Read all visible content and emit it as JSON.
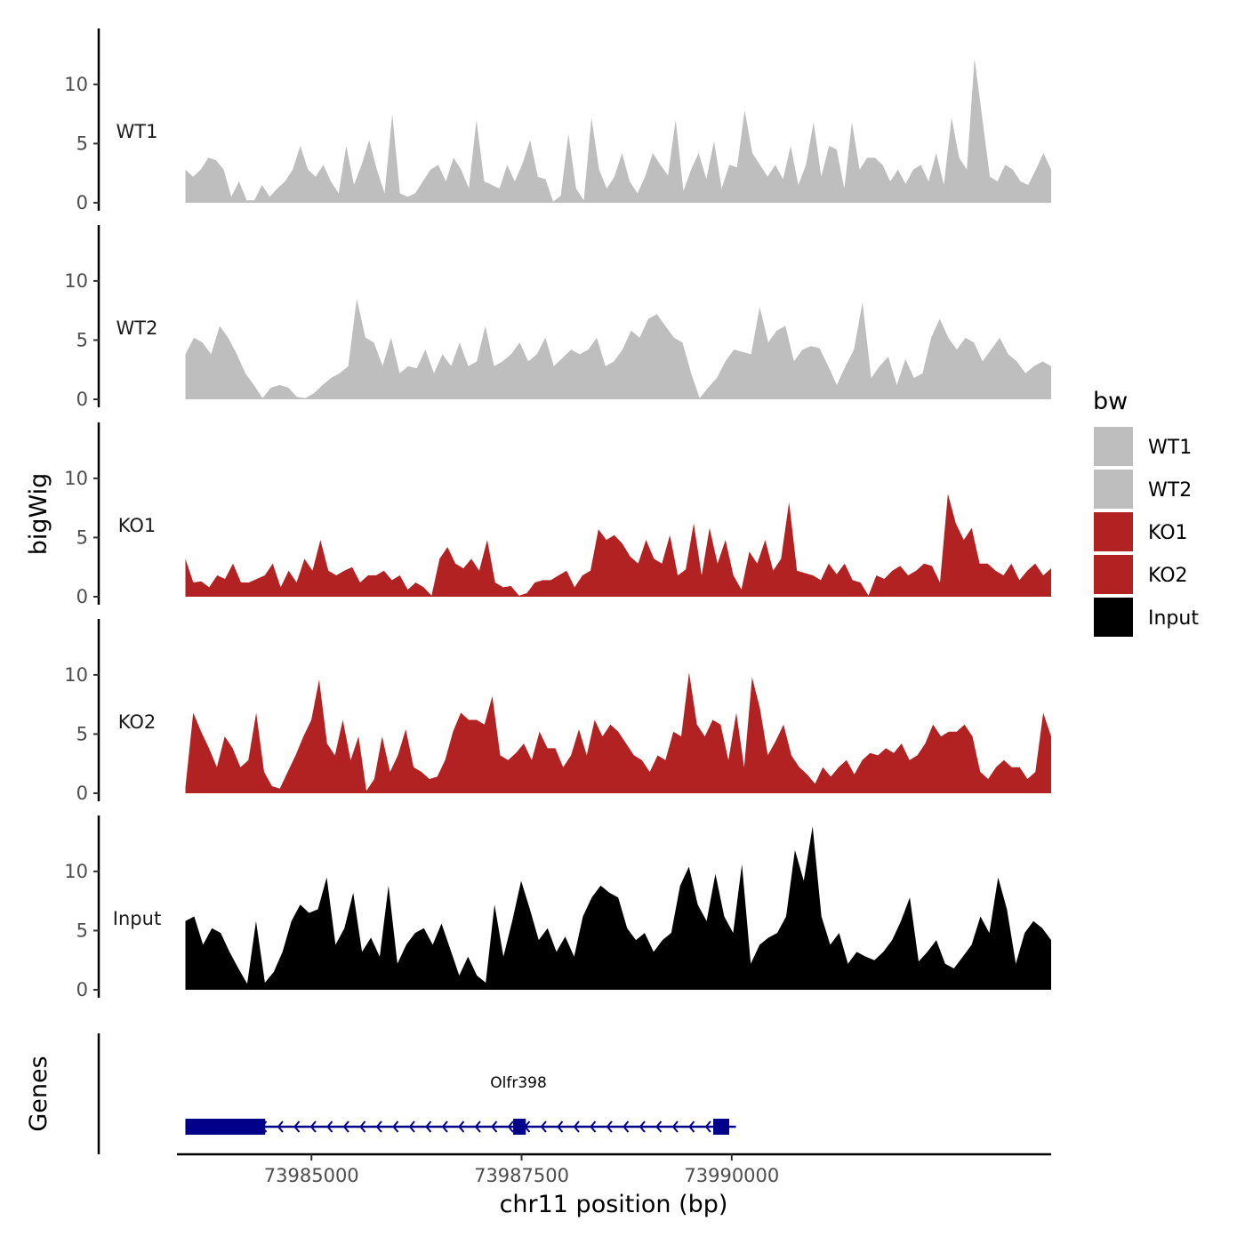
{
  "chart_data": {
    "type": "area",
    "ylabel": "bigWig",
    "xlabel": "chr11 position (bp)",
    "xlim": [
      73983400,
      73993800
    ],
    "ylim": [
      0,
      14.5
    ],
    "y_ticks": [
      0,
      5,
      10
    ],
    "y_tick_labels": [
      "0",
      "5",
      "10"
    ],
    "x_ticks": [
      73985000,
      73987500,
      73990000
    ],
    "x_tick_labels": [
      "73985000",
      "73987500",
      "73990000"
    ],
    "x_start": 73983500,
    "x_end": 73993800,
    "legend": {
      "title": "bw",
      "entries": [
        {
          "label": "WT1",
          "color": "#bebebe"
        },
        {
          "label": "WT2",
          "color": "#bebebe"
        },
        {
          "label": "KO1",
          "color": "#b22222"
        },
        {
          "label": "KO2",
          "color": "#b22222"
        },
        {
          "label": "Input",
          "color": "#000000"
        }
      ]
    },
    "tracks": [
      {
        "name": "WT1",
        "color": "#bebebe",
        "values": [
          2.8,
          2.2,
          2.8,
          3.8,
          3.6,
          2.8,
          0.5,
          1.8,
          0.2,
          0.2,
          1.5,
          0.5,
          1.2,
          1.8,
          2.8,
          4.8,
          2.8,
          2.2,
          3.2,
          1.8,
          0.8,
          4.8,
          1.5,
          3.2,
          5.3,
          2.8,
          0.8,
          7.5,
          0.8,
          0.5,
          0.8,
          1.8,
          2.8,
          3.2,
          1.8,
          3.8,
          2.8,
          1.2,
          7.0,
          1.8,
          1.5,
          1.2,
          3.2,
          1.8,
          3.3,
          5.3,
          2.2,
          2.0,
          0.1,
          0.6,
          5.8,
          1.2,
          0.2,
          7.2,
          2.8,
          1.2,
          2.2,
          4.2,
          1.8,
          0.8,
          2.2,
          4.2,
          3.2,
          2.3,
          7.0,
          1.0,
          2.8,
          4.2,
          2.0,
          5.2,
          1.2,
          3.2,
          3.0,
          7.8,
          4.2,
          3.2,
          2.2,
          3.2,
          2.0,
          4.8,
          1.5,
          3.2,
          6.8,
          2.2,
          4.8,
          4.5,
          1.2,
          6.8,
          2.8,
          3.8,
          3.8,
          3.2,
          1.8,
          2.8,
          1.6,
          2.8,
          3.2,
          1.8,
          4.2,
          1.5,
          7.2,
          3.8,
          2.8,
          12.2,
          7.2,
          2.2,
          1.8,
          3.2,
          2.8,
          1.8,
          1.5,
          2.8,
          4.2,
          2.8
        ]
      },
      {
        "name": "WT2",
        "color": "#bebebe",
        "values": [
          3.8,
          5.2,
          4.8,
          3.8,
          6.2,
          5.2,
          3.8,
          2.2,
          1.2,
          0.1,
          1.0,
          1.2,
          1.0,
          0.2,
          0.1,
          0.5,
          1.2,
          1.8,
          2.2,
          2.8,
          8.5,
          5.2,
          4.8,
          2.8,
          5.2,
          2.2,
          2.8,
          2.6,
          4.2,
          2.2,
          3.8,
          2.8,
          4.8,
          2.8,
          3.2,
          6.2,
          2.8,
          3.2,
          3.8,
          4.8,
          3.2,
          3.8,
          5.2,
          2.8,
          3.5,
          4.2,
          3.8,
          4.2,
          5.2,
          2.8,
          3.2,
          4.2,
          5.8,
          5.2,
          6.8,
          7.2,
          6.2,
          5.2,
          4.8,
          2.2,
          0.1,
          1.0,
          1.8,
          3.2,
          4.2,
          4.0,
          3.8,
          7.8,
          4.8,
          5.8,
          6.2,
          3.2,
          4.2,
          4.5,
          4.3,
          2.8,
          1.2,
          2.8,
          4.2,
          8.2,
          1.8,
          2.8,
          3.6,
          1.2,
          3.4,
          1.8,
          2.2,
          5.2,
          6.8,
          5.2,
          4.2,
          5.2,
          4.8,
          3.2,
          4.2,
          5.2,
          3.8,
          3.2,
          2.2,
          2.8,
          3.2,
          2.8
        ]
      },
      {
        "name": "KO1",
        "color": "#b22222",
        "values": [
          3.2,
          1.2,
          1.3,
          0.8,
          1.8,
          1.5,
          2.8,
          1.2,
          1.2,
          1.5,
          1.8,
          2.8,
          0.8,
          2.2,
          1.2,
          3.2,
          2.2,
          4.8,
          2.2,
          1.8,
          2.2,
          2.5,
          1.2,
          1.8,
          1.8,
          2.2,
          1.4,
          1.8,
          0.6,
          1.2,
          0.8,
          0.1,
          3.2,
          4.2,
          2.8,
          2.4,
          3.2,
          2.2,
          4.8,
          1.2,
          0.8,
          0.9,
          0.1,
          0.3,
          1.2,
          1.4,
          1.4,
          1.8,
          2.2,
          0.8,
          1.8,
          2.2,
          5.7,
          4.8,
          5.2,
          4.5,
          3.4,
          2.8,
          4.8,
          3.2,
          2.8,
          5.2,
          1.8,
          2.3,
          6.2,
          1.8,
          5.8,
          2.8,
          4.8,
          1.8,
          0.6,
          3.8,
          2.8,
          4.8,
          2.2,
          3.2,
          8.0,
          2.2,
          2.0,
          1.8,
          1.4,
          2.8,
          1.9,
          2.8,
          1.4,
          1.2,
          0.1,
          1.8,
          1.5,
          2.2,
          2.6,
          1.8,
          2.2,
          2.8,
          2.6,
          1.2,
          8.7,
          6.2,
          4.8,
          5.8,
          2.8,
          2.8,
          2.2,
          1.8,
          2.8,
          1.4,
          2.2,
          2.8,
          1.8,
          2.4
        ]
      },
      {
        "name": "KO2",
        "color": "#b22222",
        "values": [
          0.5,
          6.8,
          5.2,
          3.8,
          2.2,
          4.8,
          3.8,
          2.2,
          2.8,
          6.8,
          1.8,
          0.6,
          0.4,
          1.8,
          3.2,
          4.8,
          6.2,
          9.6,
          4.2,
          3.2,
          6.2,
          2.8,
          4.8,
          0.2,
          1.2,
          4.8,
          1.8,
          3.2,
          5.4,
          2.2,
          1.8,
          1.2,
          1.4,
          2.8,
          5.2,
          6.8,
          6.2,
          6.2,
          5.8,
          8.2,
          3.2,
          2.8,
          3.4,
          4.2,
          2.8,
          5.2,
          3.8,
          3.8,
          2.2,
          3.2,
          5.4,
          3.2,
          6.2,
          4.8,
          5.8,
          5.2,
          4.2,
          3.2,
          2.8,
          1.8,
          3.2,
          2.8,
          5.2,
          4.8,
          10.2,
          5.8,
          4.8,
          6.2,
          5.8,
          2.8,
          6.8,
          2.2,
          9.8,
          7.2,
          3.2,
          4.4,
          5.8,
          3.2,
          2.2,
          1.6,
          0.8,
          2.2,
          1.4,
          2.2,
          2.8,
          1.6,
          2.8,
          3.4,
          3.2,
          3.8,
          3.4,
          4.2,
          2.8,
          3.2,
          4.2,
          5.8,
          4.8,
          5.2,
          5.2,
          5.8,
          4.8,
          1.8,
          1.2,
          2.2,
          2.8,
          2.2,
          2.2,
          1.2,
          1.8,
          6.8,
          4.8
        ]
      },
      {
        "name": "Input",
        "color": "#000000",
        "values": [
          5.8,
          6.2,
          3.8,
          5.2,
          4.8,
          3.2,
          1.8,
          0.5,
          5.8,
          0.6,
          1.5,
          3.2,
          5.8,
          7.2,
          6.5,
          6.8,
          9.5,
          3.8,
          5.2,
          8.2,
          3.2,
          4.4,
          2.8,
          8.8,
          2.2,
          3.8,
          4.8,
          5.2,
          3.8,
          5.6,
          3.4,
          1.2,
          2.8,
          1.2,
          0.6,
          7.2,
          2.8,
          5.8,
          9.2,
          6.8,
          4.2,
          5.2,
          3.2,
          4.5,
          2.8,
          6.2,
          7.8,
          8.8,
          8.2,
          7.8,
          5.2,
          4.2,
          4.8,
          3.2,
          4.2,
          4.8,
          8.8,
          10.4,
          7.2,
          5.8,
          9.8,
          6.2,
          4.8,
          10.6,
          2.2,
          3.8,
          4.4,
          4.8,
          6.2,
          11.8,
          9.2,
          13.8,
          6.2,
          3.8,
          4.8,
          2.2,
          3.2,
          2.8,
          2.5,
          3.2,
          4.2,
          5.8,
          7.8,
          2.4,
          3.2,
          4.2,
          2.2,
          1.8,
          2.8,
          3.8,
          6.2,
          4.8,
          9.5,
          6.8,
          2.2,
          4.8,
          5.8,
          5.2,
          4.2
        ]
      }
    ],
    "gene_track": {
      "ylabel": "Genes",
      "gene_name": "Olfr398",
      "strand": "-",
      "start": 73983500,
      "end": 73990050,
      "exons": [
        [
          73983500,
          73984450
        ],
        [
          73987400,
          73987550
        ],
        [
          73989780,
          73989970
        ]
      ]
    }
  }
}
